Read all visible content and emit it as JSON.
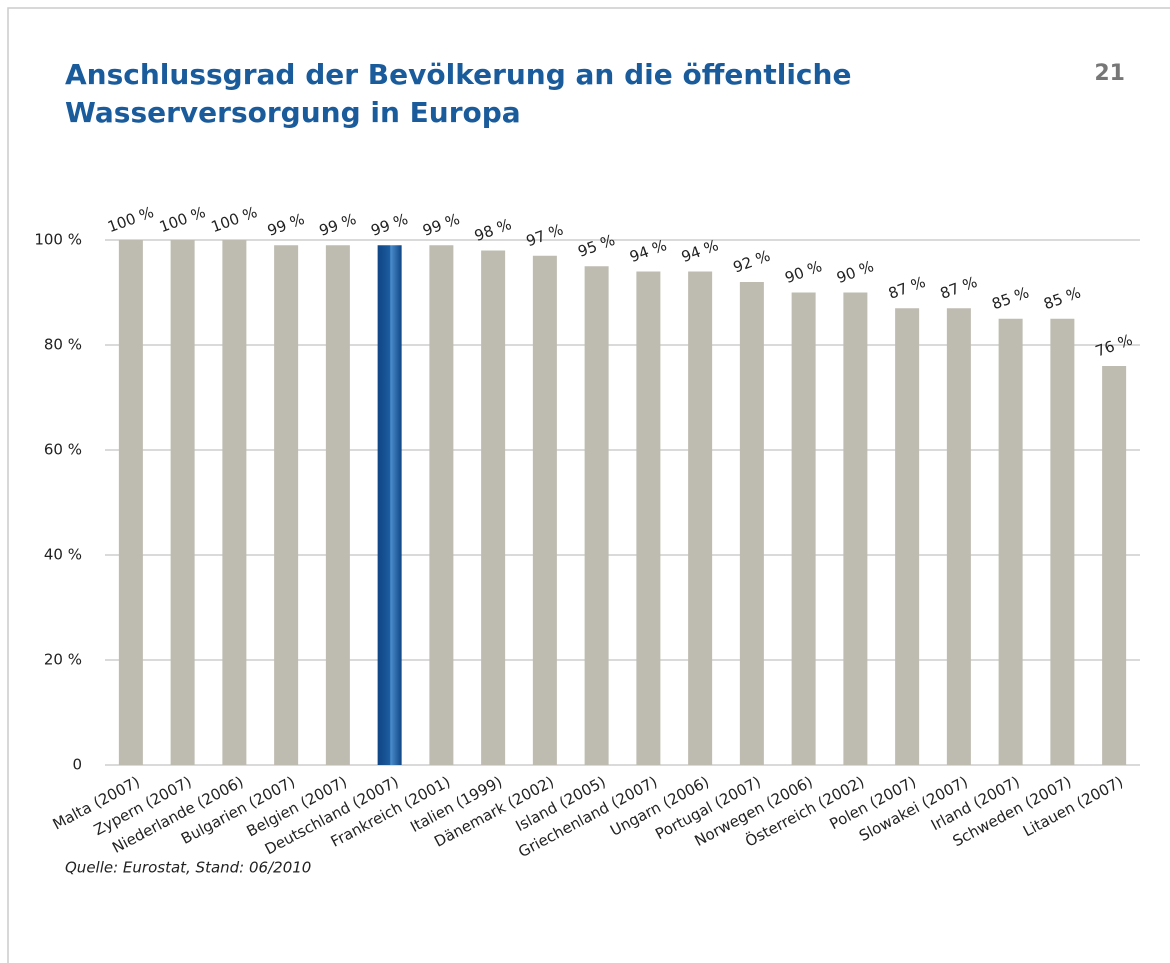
{
  "chart_data": {
    "type": "bar",
    "title": [
      "Anschlussgrad der Bevölkerung an die öffentliche",
      "Wasserversorgung in Europa"
    ],
    "page_number": "21",
    "source": "Quelle: Eurostat, Stand: 06/2010",
    "categories": [
      "Malta (2007)",
      "Zypern (2007)",
      "Niederlande (2006)",
      "Bulgarien (2007)",
      "Belgien (2007)",
      "Deutschland (2007)",
      "Frankreich (2001)",
      "Italien (1999)",
      "Dänemark (2002)",
      "Island (2005)",
      "Griechenland (2007)",
      "Ungarn (2006)",
      "Portugal (2007)",
      "Norwegen (2006)",
      "Österreich (2002)",
      "Polen (2007)",
      "Slowakei (2007)",
      "Irland (2007)",
      "Schweden (2007)",
      "Litauen (2007)"
    ],
    "values": [
      100,
      100,
      100,
      99,
      99,
      99,
      99,
      98,
      97,
      95,
      94,
      94,
      92,
      90,
      90,
      87,
      87,
      85,
      85,
      76
    ],
    "value_labels": [
      "100 %",
      "100 %",
      "100 %",
      "99 %",
      "99 %",
      "99 %",
      "99 %",
      "98 %",
      "97 %",
      "95 %",
      "94 %",
      "94 %",
      "92 %",
      "90 %",
      "90 %",
      "87 %",
      "87 %",
      "85 %",
      "85 %",
      "76 %"
    ],
    "colors": [
      "#bebcb0",
      "#bebcb0",
      "#bebcb0",
      "#bebcb0",
      "#bebcb0",
      "#1c5c9e",
      "#bebcb0",
      "#bebcb0",
      "#bebcb0",
      "#bebcb0",
      "#bebcb0",
      "#bebcb0",
      "#bebcb0",
      "#bebcb0",
      "#bebcb0",
      "#bebcb0",
      "#bebcb0",
      "#bebcb0",
      "#bebcb0",
      "#bebcb0"
    ],
    "ylim": [
      0,
      100
    ],
    "yticks": [
      0,
      {
        "value": 20,
        "label": "20 %"
      },
      {
        "value": 40,
        "label": "40 %"
      },
      {
        "value": 60,
        "label": "60 %"
      },
      {
        "value": 80,
        "label": "80 %"
      },
      {
        "value": 100,
        "label": "100 %"
      }
    ],
    "grid": true
  }
}
